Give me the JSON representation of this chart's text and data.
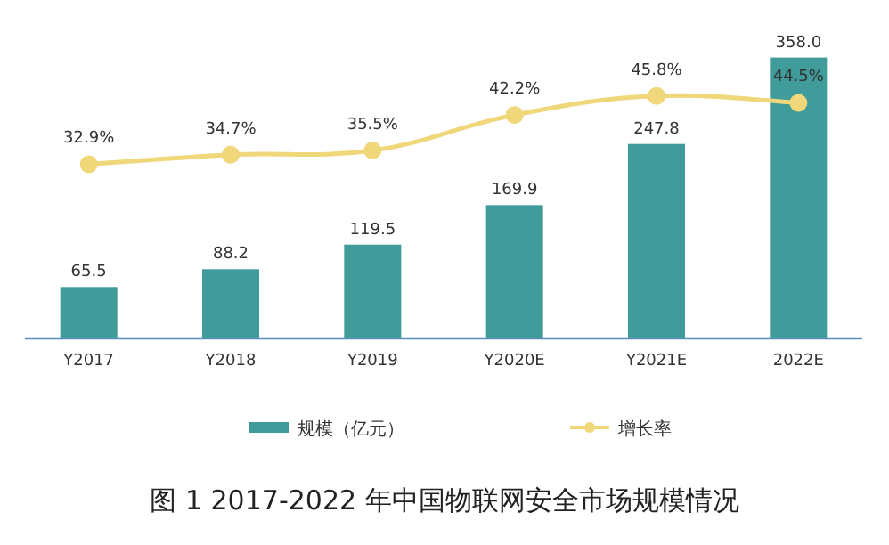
{
  "chart_data": {
    "type": "bar",
    "title": "图 1 2017-2022 年中国物联网安全市场规模情况",
    "categories": [
      "Y2017",
      "Y2018",
      "Y2019",
      "Y2020E",
      "Y2021E",
      "2022E"
    ],
    "series": [
      {
        "name": "规模（亿元）",
        "color": "#3f9c9a",
        "values": [
          65.5,
          88.2,
          119.5,
          169.9,
          247.8,
          358.0
        ],
        "value_labels": [
          "65.5",
          "88.2",
          "119.5",
          "169.9",
          "247.8",
          "358.0"
        ]
      },
      {
        "name": "增长率",
        "type": "line",
        "axis": "y2",
        "color": "#f0d77a",
        "values": [
          32.9,
          34.7,
          35.5,
          42.2,
          45.8,
          44.5
        ],
        "value_labels": [
          "32.9%",
          "34.7%",
          "35.5%",
          "42.2%",
          "45.8%",
          "44.5%"
        ]
      }
    ],
    "marker": "circle",
    "legend": "bottom"
  }
}
